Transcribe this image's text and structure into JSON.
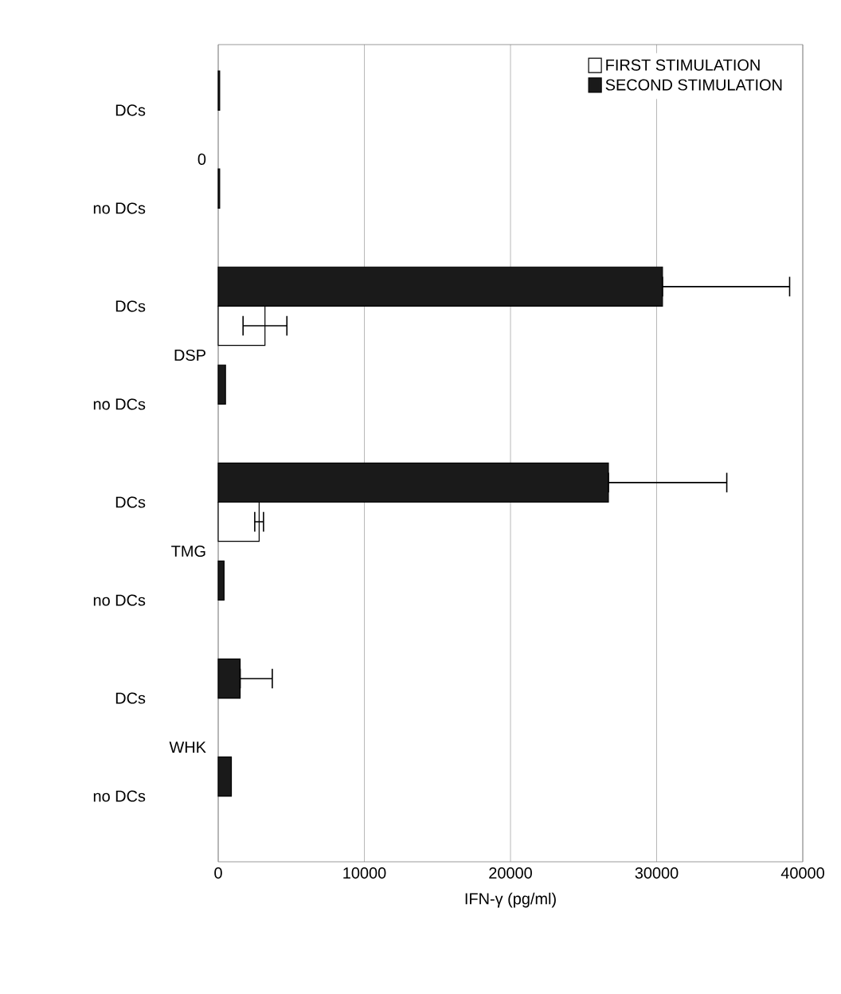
{
  "chart_data": {
    "type": "bar",
    "orientation": "horizontal",
    "xlabel": "IFN-γ (pg/ml)",
    "categories": [
      "DCs",
      "no DCs",
      "DCs",
      "no DCs",
      "DCs",
      "no DCs",
      "DCs",
      "no DCs"
    ],
    "annotations": [
      "0",
      "DSP",
      "TMG",
      "WHK"
    ],
    "series": [
      {
        "name": "FIRST STIMULATION",
        "color": "#ffffff",
        "values": [
          null,
          null,
          3200,
          null,
          2800,
          null,
          null,
          null
        ],
        "errors": [
          null,
          null,
          1500,
          null,
          300,
          null,
          null,
          null
        ]
      },
      {
        "name": "SECOND STIMULATION",
        "color": "#1a1a1a",
        "values": [
          100,
          100,
          30400,
          500,
          26700,
          400,
          1500,
          900
        ],
        "errors": [
          null,
          null,
          [
            30400,
            39100
          ],
          null,
          [
            26700,
            34800
          ],
          null,
          [
            1500,
            3700
          ],
          null
        ]
      }
    ],
    "xlim": [
      0,
      40000
    ],
    "xticks": [
      0,
      10000,
      20000,
      30000,
      40000
    ],
    "grid": "x",
    "legend": "top right"
  }
}
